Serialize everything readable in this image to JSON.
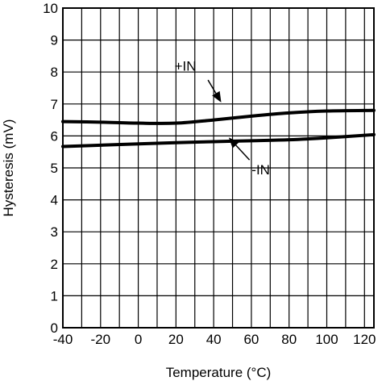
{
  "chart_data": {
    "type": "line",
    "title": "",
    "xlabel": "Temperature (°C)",
    "ylabel": "Hysteresis (mV)",
    "xlim": [
      -40,
      125
    ],
    "ylim": [
      0,
      10
    ],
    "grid": true,
    "x_ticks": [
      -40,
      -20,
      0,
      20,
      40,
      60,
      80,
      100,
      120
    ],
    "y_ticks": [
      0,
      1,
      2,
      3,
      4,
      5,
      6,
      7,
      8,
      9,
      10
    ],
    "series": [
      {
        "name": "+IN",
        "x": [
          -40,
          -20,
          0,
          20,
          40,
          60,
          80,
          100,
          125
        ],
        "y": [
          6.45,
          6.43,
          6.4,
          6.4,
          6.5,
          6.62,
          6.72,
          6.78,
          6.8
        ]
      },
      {
        "name": "-IN",
        "x": [
          -40,
          -20,
          0,
          20,
          40,
          60,
          80,
          100,
          125
        ],
        "y": [
          5.67,
          5.71,
          5.75,
          5.79,
          5.82,
          5.85,
          5.88,
          5.94,
          6.04
        ]
      }
    ],
    "annotations": [
      {
        "text": "+IN",
        "series": 0,
        "label_at": [
          25,
          8.2
        ],
        "arrow_from": [
          37,
          7.75
        ],
        "arrow_to": [
          44,
          7.05
        ]
      },
      {
        "text": "-IN",
        "series": 1,
        "label_at": [
          65,
          4.95
        ],
        "arrow_from": [
          59,
          5.25
        ],
        "arrow_to": [
          48,
          5.95
        ]
      }
    ]
  }
}
